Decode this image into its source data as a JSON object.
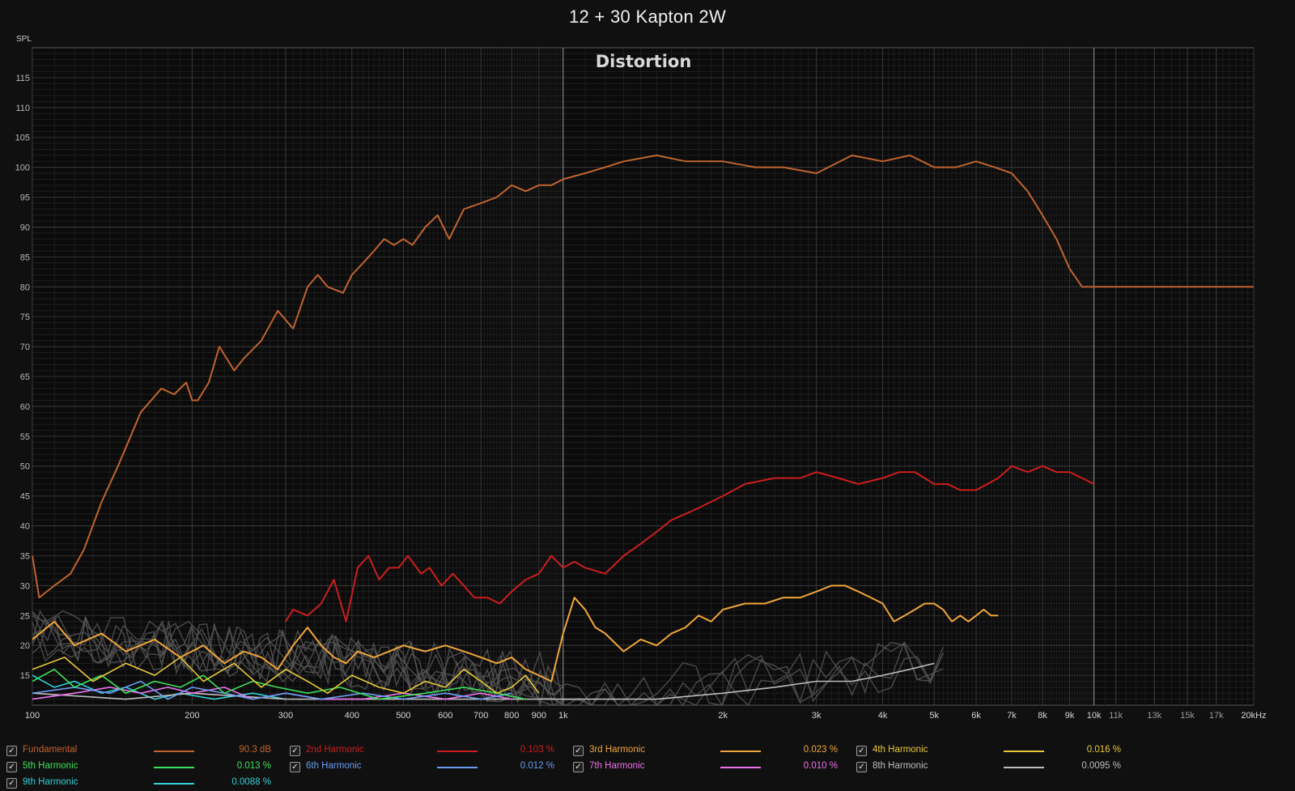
{
  "title": "12 + 30 Kapton 2W",
  "chart_data": {
    "type": "line",
    "title": "Distortion",
    "ylabel": "SPL",
    "xscale": "log",
    "xlim": [
      100,
      20000
    ],
    "ylim": [
      10,
      120
    ],
    "grid": true,
    "legend_position": "bottom",
    "y_ticks": [
      "115",
      "110",
      "105",
      "100",
      "95",
      "90",
      "85",
      "80",
      "75",
      "70",
      "65",
      "60",
      "55",
      "50",
      "45",
      "40",
      "35",
      "30",
      "25",
      "20",
      "15"
    ],
    "x_ticks": [
      {
        "v": 100,
        "label": "100"
      },
      {
        "v": 200,
        "label": "200"
      },
      {
        "v": 300,
        "label": "300"
      },
      {
        "v": 400,
        "label": "400"
      },
      {
        "v": 500,
        "label": "500"
      },
      {
        "v": 600,
        "label": "600"
      },
      {
        "v": 700,
        "label": "700"
      },
      {
        "v": 800,
        "label": "800"
      },
      {
        "v": 900,
        "label": "900"
      },
      {
        "v": 1000,
        "label": "1k"
      },
      {
        "v": 2000,
        "label": "2k"
      },
      {
        "v": 3000,
        "label": "3k"
      },
      {
        "v": 4000,
        "label": "4k"
      },
      {
        "v": 5000,
        "label": "5k"
      },
      {
        "v": 6000,
        "label": "6k"
      },
      {
        "v": 7000,
        "label": "7k"
      },
      {
        "v": 8000,
        "label": "8k"
      },
      {
        "v": 9000,
        "label": "9k"
      },
      {
        "v": 10000,
        "label": "10k"
      },
      {
        "v": 11000,
        "label": "11k"
      },
      {
        "v": 13000,
        "label": "13k"
      },
      {
        "v": 15000,
        "label": "15k"
      },
      {
        "v": 17000,
        "label": "17k"
      },
      {
        "v": 20000,
        "label": "20kHz"
      }
    ],
    "series": [
      {
        "name": "Fundamental",
        "color": "#c0642e",
        "value": "90.3 dB",
        "x": [
          100,
          103,
          110,
          118,
          125,
          135,
          145,
          160,
          175,
          185,
          195,
          200,
          205,
          215,
          225,
          240,
          250,
          270,
          290,
          310,
          330,
          345,
          360,
          385,
          400,
          420,
          440,
          460,
          480,
          500,
          520,
          550,
          580,
          610,
          650,
          700,
          750,
          800,
          850,
          900,
          950,
          1000,
          1100,
          1200,
          1300,
          1500,
          1700,
          2000,
          2300,
          2600,
          3000,
          3500,
          4000,
          4500,
          5000,
          5500,
          6000,
          6500,
          7000,
          7500,
          8000,
          8500,
          9000,
          9500,
          10000,
          11000,
          12000,
          13000,
          14000,
          15000,
          16000,
          17000,
          18000,
          19000,
          20000
        ],
        "y": [
          35,
          28,
          30,
          32,
          36,
          44,
          50,
          59,
          63,
          62,
          64,
          61,
          61,
          64,
          70,
          66,
          68,
          71,
          76,
          73,
          80,
          82,
          80,
          79,
          82,
          84,
          86,
          88,
          87,
          88,
          87,
          90,
          92,
          88,
          93,
          94,
          95,
          97,
          96,
          97,
          97,
          98,
          99,
          100,
          101,
          102,
          101,
          101,
          100,
          100,
          99,
          102,
          101,
          102,
          100,
          100,
          101,
          100,
          99,
          96,
          92,
          88,
          83,
          80,
          80,
          80,
          80,
          80,
          80,
          80,
          80,
          80,
          80,
          80,
          80
        ]
      },
      {
        "name": "2nd Harmonic",
        "color": "#cc1e1e",
        "value": "0.103 %",
        "x": [
          300,
          310,
          330,
          350,
          370,
          390,
          410,
          430,
          450,
          470,
          490,
          510,
          540,
          560,
          590,
          620,
          650,
          680,
          720,
          760,
          800,
          850,
          900,
          950,
          1000,
          1050,
          1100,
          1200,
          1300,
          1400,
          1500,
          1600,
          1700,
          1800,
          2000,
          2200,
          2500,
          2800,
          3000,
          3300,
          3600,
          4000,
          4300,
          4600,
          5000,
          5300,
          5600,
          6000,
          6300,
          6600,
          7000,
          7500,
          8000,
          8500,
          9000,
          9500,
          10000
        ],
        "y": [
          24,
          26,
          25,
          27,
          31,
          24,
          33,
          35,
          31,
          33,
          33,
          35,
          32,
          33,
          30,
          32,
          30,
          28,
          28,
          27,
          29,
          31,
          32,
          35,
          33,
          34,
          33,
          32,
          35,
          37,
          39,
          41,
          42,
          43,
          45,
          47,
          48,
          48,
          49,
          48,
          47,
          48,
          49,
          49,
          47,
          47,
          46,
          46,
          47,
          48,
          50,
          49,
          50,
          49,
          49,
          48,
          47
        ]
      },
      {
        "name": "3rd Harmonic",
        "color": "#f0a53a",
        "value": "0.023 %",
        "x": [
          100,
          110,
          120,
          135,
          150,
          170,
          190,
          210,
          230,
          250,
          270,
          290,
          310,
          330,
          350,
          370,
          390,
          410,
          440,
          470,
          500,
          550,
          600,
          650,
          700,
          750,
          800,
          850,
          900,
          950,
          1000,
          1050,
          1100,
          1150,
          1200,
          1300,
          1400,
          1500,
          1600,
          1700,
          1800,
          1900,
          2000,
          2200,
          2400,
          2600,
          2800,
          3000,
          3200,
          3400,
          3600,
          3800,
          4000,
          4200,
          4400,
          4600,
          4800,
          5000,
          5200,
          5400,
          5600,
          5800,
          6000,
          6200,
          6400,
          6600
        ],
        "y": [
          21,
          24,
          20,
          22,
          19,
          21,
          18,
          20,
          17,
          19,
          18,
          16,
          20,
          23,
          20,
          18,
          17,
          19,
          18,
          19,
          20,
          19,
          20,
          19,
          18,
          17,
          18,
          16,
          15,
          14,
          22,
          28,
          26,
          23,
          22,
          19,
          21,
          20,
          22,
          23,
          25,
          24,
          26,
          27,
          27,
          28,
          28,
          29,
          30,
          30,
          29,
          28,
          27,
          24,
          25,
          26,
          27,
          27,
          26,
          24,
          25,
          24,
          25,
          26,
          25,
          25
        ]
      },
      {
        "name": "4th Harmonic",
        "color": "#e8c83a",
        "value": "0.016 %",
        "x": [
          100,
          115,
          130,
          150,
          170,
          190,
          210,
          240,
          270,
          300,
          330,
          360,
          400,
          450,
          500,
          550,
          600,
          650,
          700,
          750,
          800,
          850,
          900
        ],
        "y": [
          16,
          18,
          14,
          17,
          15,
          18,
          14,
          17,
          13,
          16,
          14,
          12,
          15,
          13,
          12,
          14,
          13,
          16,
          14,
          12,
          13,
          15,
          12
        ]
      },
      {
        "name": "5th Harmonic",
        "color": "#3ee05a",
        "value": "0.013 %",
        "x": [
          100,
          110,
          120,
          135,
          150,
          170,
          190,
          210,
          230,
          260,
          290,
          330,
          380,
          450,
          550,
          650,
          750,
          850
        ],
        "y": [
          14,
          16,
          13,
          15,
          12,
          14,
          13,
          15,
          12,
          14,
          13,
          12,
          13,
          11,
          12,
          13,
          12,
          11
        ]
      },
      {
        "name": "6th Harmonic",
        "color": "#6a9cf0",
        "value": "0.012 %",
        "x": [
          100,
          120,
          140,
          160,
          180,
          200,
          230,
          260,
          300,
          350,
          420,
          500,
          600,
          700,
          800
        ],
        "y": [
          12,
          13,
          12,
          14,
          11,
          13,
          12,
          11,
          12,
          11,
          12,
          11,
          12,
          11,
          12
        ]
      },
      {
        "name": "7th Harmonic",
        "color": "#ee72ee",
        "value": "0.010 %",
        "x": [
          100,
          120,
          140,
          160,
          180,
          200,
          230,
          260,
          300,
          350,
          420,
          500,
          600,
          700,
          800
        ],
        "y": [
          11,
          12,
          13,
          12,
          13,
          12,
          13,
          11,
          12,
          11,
          11,
          12,
          11,
          12,
          11
        ]
      },
      {
        "name": "8th Harmonic",
        "color": "#bdbdbd",
        "value": "0.0095 %",
        "x": [
          100,
          150,
          200,
          300,
          500,
          800,
          1000,
          1500,
          2000,
          2500,
          3000,
          3500,
          4000,
          4500,
          5000
        ],
        "y": [
          12,
          11,
          12,
          11,
          11,
          11,
          11,
          11,
          12,
          13,
          14,
          14,
          15,
          16,
          17
        ]
      },
      {
        "name": "9th Harmonic",
        "color": "#30d0d8",
        "value": "0.0088 %",
        "x": [
          100,
          110,
          120,
          135,
          150,
          170,
          190,
          220,
          260,
          300
        ],
        "y": [
          15,
          13,
          14,
          12,
          13,
          11,
          12,
          11,
          12,
          11
        ]
      }
    ]
  }
}
